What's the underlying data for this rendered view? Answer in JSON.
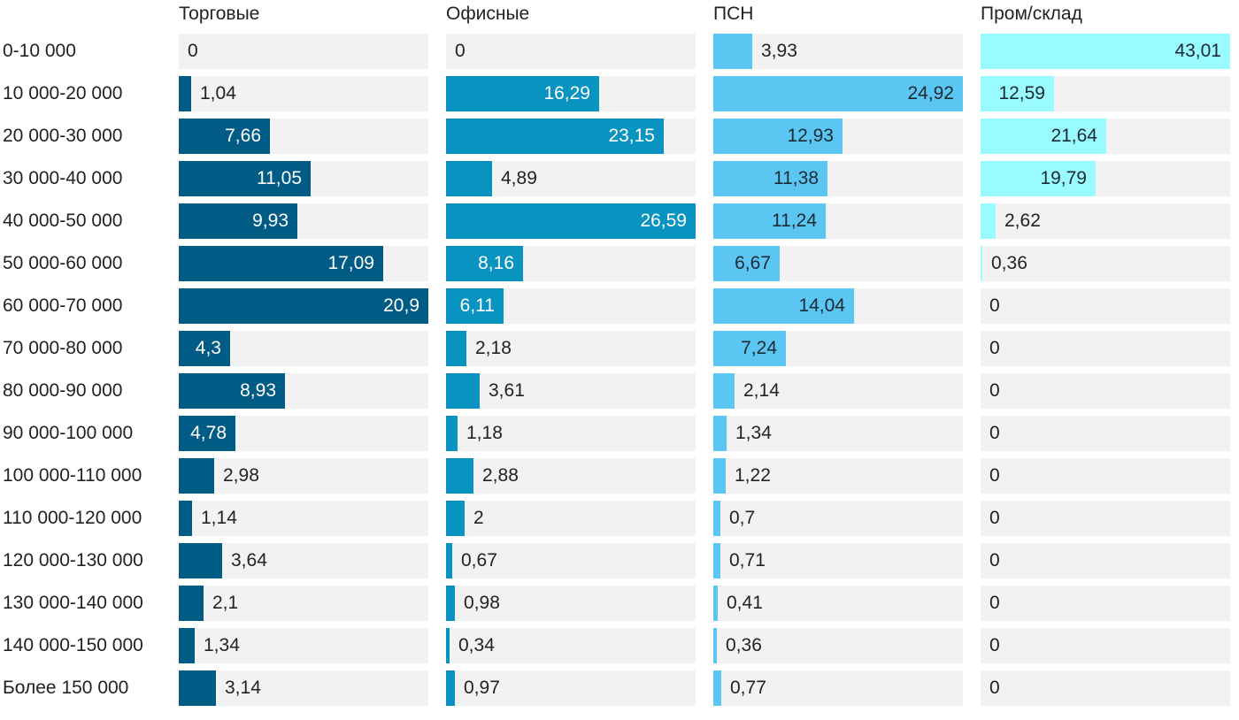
{
  "chart_data": {
    "type": "bar",
    "orientation": "horizontal",
    "categories": [
      "0-10 000",
      "10 000-20 000",
      "20 000-30 000",
      "30 000-40 000",
      "40 000-50 000",
      "50 000-60 000",
      "60 000-70 000",
      "70 000-80 000",
      "80 000-90 000",
      "90 000-100 000",
      "100 000-110 000",
      "110 000-120 000",
      "120 000-130 000",
      "130 000-140 000",
      "140 000-150 000",
      "Более 150 000"
    ],
    "series": [
      {
        "name": "Торговые",
        "color": "#005b85",
        "max": 20.9,
        "values": [
          0,
          1.04,
          7.66,
          11.05,
          9.93,
          17.09,
          20.9,
          4.3,
          8.93,
          4.78,
          2.98,
          1.14,
          3.64,
          2.1,
          1.34,
          3.14
        ],
        "labels": [
          "0",
          "1,04",
          "7,66",
          "11,05",
          "9,93",
          "17,09",
          "20,9",
          "4,3",
          "8,93",
          "4,78",
          "2,98",
          "1,14",
          "3,64",
          "2,1",
          "1,34",
          "3,14"
        ]
      },
      {
        "name": "Офисные",
        "color": "#0893c1",
        "max": 26.59,
        "values": [
          0,
          16.29,
          23.15,
          4.89,
          26.59,
          8.16,
          6.11,
          2.18,
          3.61,
          1.18,
          2.88,
          2,
          0.67,
          0.98,
          0.34,
          0.97
        ],
        "labels": [
          "0",
          "16,29",
          "23,15",
          "4,89",
          "26,59",
          "8,16",
          "6,11",
          "2,18",
          "3,61",
          "1,18",
          "2,88",
          "2",
          "0,67",
          "0,98",
          "0,34",
          "0,97"
        ]
      },
      {
        "name": "ПСН",
        "color": "#5cc6f2",
        "max": 24.92,
        "values": [
          3.93,
          24.92,
          12.93,
          11.38,
          11.24,
          6.67,
          14.04,
          7.24,
          2.14,
          1.34,
          1.22,
          0.7,
          0.71,
          0.41,
          0.36,
          0.77
        ],
        "labels": [
          "3,93",
          "24,92",
          "12,93",
          "11,38",
          "11,24",
          "6,67",
          "14,04",
          "7,24",
          "2,14",
          "1,34",
          "1,22",
          "0,7",
          "0,71",
          "0,41",
          "0,36",
          "0,77"
        ]
      },
      {
        "name": "Пром/склад",
        "color": "#99fbff",
        "max": 43.01,
        "values": [
          43.01,
          12.59,
          21.64,
          19.79,
          2.62,
          0.36,
          0,
          0,
          0,
          0,
          0,
          0,
          0,
          0,
          0,
          0
        ],
        "labels": [
          "43,01",
          "12,59",
          "21,64",
          "19,79",
          "2,62",
          "0,36",
          "0",
          "0",
          "0",
          "0",
          "0",
          "0",
          "0",
          "0",
          "0",
          "0"
        ]
      }
    ],
    "title": "",
    "xlabel": "",
    "ylabel": "",
    "legend": "none",
    "grid": false
  }
}
